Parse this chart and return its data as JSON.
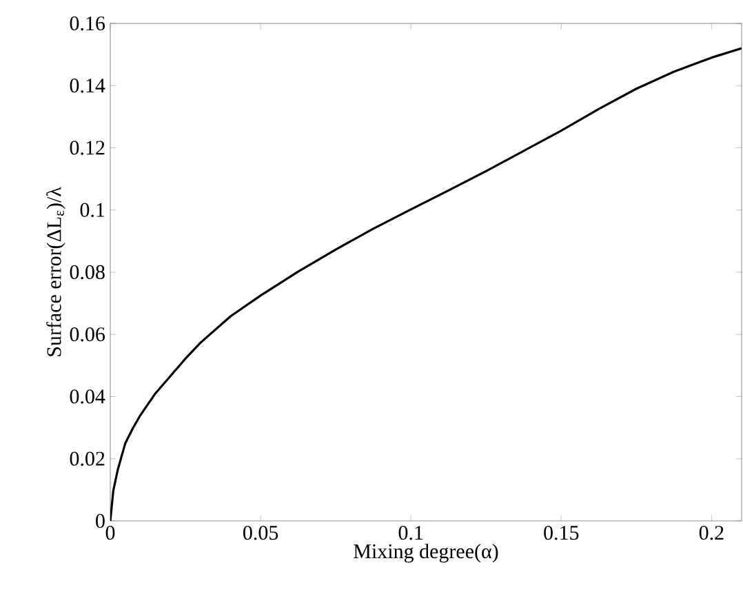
{
  "chart_data": {
    "type": "line",
    "xlabel": "Mixing degree(α)",
    "ylabel": "Surface error(ΔL$_{ε}$)/λ",
    "x": [
      0,
      0.001,
      0.0025,
      0.005,
      0.0075,
      0.01,
      0.015,
      0.02,
      0.025,
      0.03,
      0.04,
      0.05,
      0.0625,
      0.075,
      0.0875,
      0.1,
      0.1125,
      0.125,
      0.1375,
      0.15,
      0.1625,
      0.175,
      0.1875,
      0.2,
      0.21
    ],
    "series": [
      {
        "color": "#000000",
        "values": [
          0,
          0.0097,
          0.0165,
          0.025,
          0.0298,
          0.034,
          0.041,
          0.0466,
          0.0522,
          0.0573,
          0.0658,
          0.0725,
          0.0802,
          0.0873,
          0.094,
          0.1002,
          0.1063,
          0.1125,
          0.119,
          0.1255,
          0.1325,
          0.139,
          0.1445,
          0.149,
          0.152
        ]
      }
    ],
    "xlim": [
      0,
      0.21
    ],
    "ylim": [
      0,
      0.16
    ],
    "xticks": [
      0,
      0.05,
      0.1,
      0.15,
      0.2
    ],
    "yticks": [
      0,
      0.02,
      0.04,
      0.06,
      0.08,
      0.1,
      0.12,
      0.14,
      0.16
    ],
    "marker": "none",
    "line_style": "solid"
  }
}
